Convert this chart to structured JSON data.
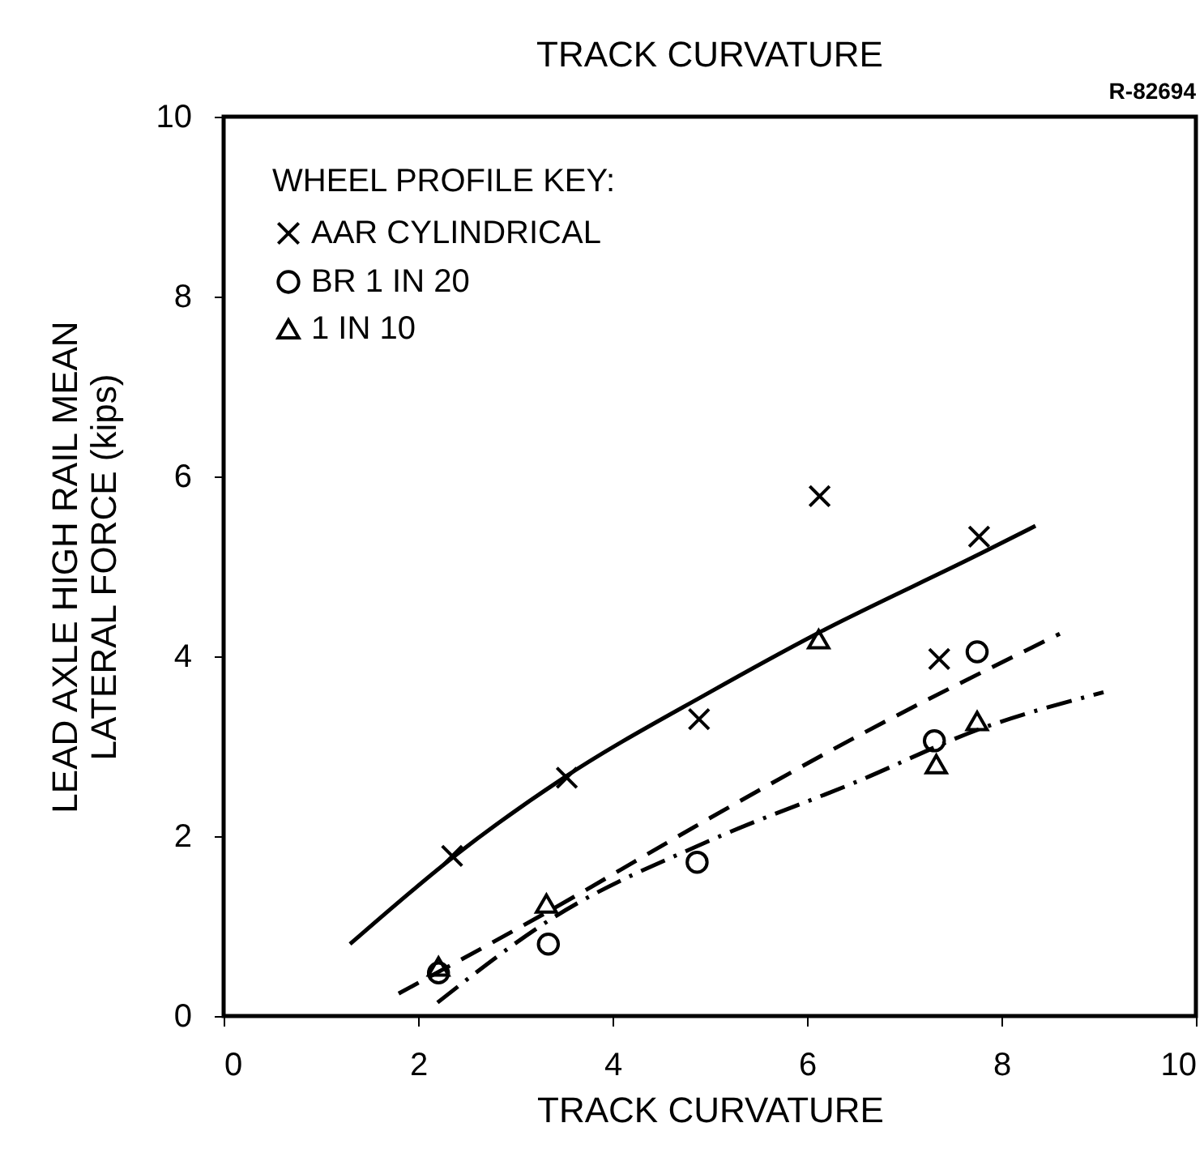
{
  "chart_data": {
    "type": "scatter",
    "title": "TRACK CURVATURE",
    "xlabel": "TRACK CURVATURE",
    "ylabel": "LEAD AXLE HIGH RAIL MEAN\nLATERAL FORCE (kips)",
    "legend_title": "WHEEL PROFILE KEY:",
    "annotations": [
      "R-82694"
    ],
    "xlim": [
      0,
      10
    ],
    "ylim": [
      0,
      10
    ],
    "xticks": [
      0,
      2,
      4,
      6,
      8,
      10
    ],
    "yticks": [
      0,
      2,
      4,
      6,
      8,
      10
    ],
    "grid": false,
    "legend": "top left",
    "series": [
      {
        "name": "AAR CYLINDRICAL",
        "type": "scatter",
        "marker": "cross",
        "color": "#000000",
        "x": [
          2.35,
          3.53,
          4.89,
          6.13,
          7.36,
          7.77
        ],
        "values": [
          1.78,
          2.65,
          3.3,
          5.78,
          3.97,
          5.33
        ]
      },
      {
        "name": "BR 1 IN 20",
        "type": "scatter",
        "marker": "circle",
        "color": "#000000",
        "x": [
          2.21,
          3.34,
          4.87,
          7.31,
          7.75
        ],
        "values": [
          0.48,
          0.8,
          1.71,
          3.06,
          4.05
        ]
      },
      {
        "name": "1 IN 10",
        "type": "scatter",
        "marker": "triangle",
        "color": "#000000",
        "x": [
          2.21,
          3.32,
          6.12,
          7.33,
          7.75
        ],
        "values": [
          0.55,
          1.25,
          4.19,
          2.8,
          3.28
        ]
      },
      {
        "type": "line",
        "line_style": "solid",
        "color": "#000000",
        "x": [
          1.3,
          2.4,
          3.5,
          5,
          6.1,
          7.8,
          8.35
        ],
        "values": [
          0.8,
          1.8,
          2.65,
          3.6,
          4.25,
          5.15,
          5.45
        ]
      },
      {
        "type": "line",
        "line_style": "dashed",
        "color": "#000000",
        "x": [
          1.8,
          3.4,
          5,
          6.5,
          8.6
        ],
        "values": [
          0.25,
          1.2,
          2.2,
          3.1,
          4.25
        ]
      },
      {
        "type": "line",
        "line_style": "dashdot",
        "color": "#000000",
        "x": [
          2.2,
          3.4,
          5,
          6.5,
          7.8,
          9.05
        ],
        "values": [
          0.15,
          1.1,
          1.95,
          2.6,
          3.2,
          3.6
        ]
      }
    ]
  }
}
